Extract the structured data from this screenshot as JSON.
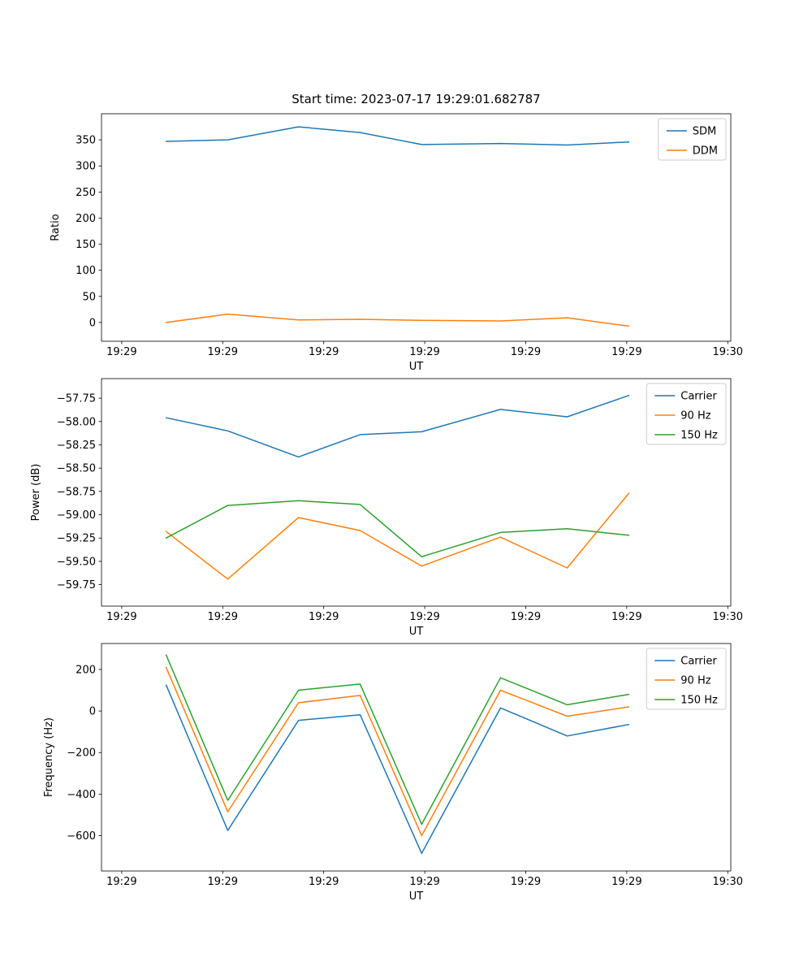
{
  "title": "Start time: 2023-07-17 19:29:01.682787",
  "chart_data": [
    {
      "type": "line",
      "xlabel": "UT",
      "ylabel": "Ratio",
      "x_seconds": [
        4.4,
        10.5,
        17.5,
        23.6,
        29.7,
        37.5,
        44.1,
        50.2
      ],
      "xlim": [
        -2,
        60.3
      ],
      "ylim": [
        -36,
        400
      ],
      "xticks": [
        0,
        10,
        20,
        30,
        40,
        50,
        60
      ],
      "xtick_labels": [
        "19:29",
        "19:29",
        "19:29",
        "19:29",
        "19:29",
        "19:29",
        "19:30"
      ],
      "yticks": [
        0,
        50,
        100,
        150,
        200,
        250,
        300,
        350
      ],
      "ytick_labels": [
        "0",
        "50",
        "100",
        "150",
        "200",
        "250",
        "300",
        "350"
      ],
      "legend_position": "upper right",
      "grid": false,
      "series": [
        {
          "name": "SDM",
          "color": "#1f77b4",
          "values": [
            347,
            350,
            375,
            364,
            341,
            343,
            340,
            346
          ]
        },
        {
          "name": "DDM",
          "color": "#ff7f0e",
          "values": [
            0,
            16,
            5,
            6,
            4,
            3,
            9,
            -7
          ]
        }
      ]
    },
    {
      "type": "line",
      "xlabel": "UT",
      "ylabel": "Power (dB)",
      "x_seconds": [
        4.4,
        10.5,
        17.5,
        23.6,
        29.7,
        37.5,
        44.1,
        50.2
      ],
      "xlim": [
        -2,
        60.3
      ],
      "ylim": [
        -59.98,
        -57.54
      ],
      "xticks": [
        0,
        10,
        20,
        30,
        40,
        50,
        60
      ],
      "xtick_labels": [
        "19:29",
        "19:29",
        "19:29",
        "19:29",
        "19:29",
        "19:29",
        "19:30"
      ],
      "yticks": [
        -59.75,
        -59.5,
        -59.25,
        -59.0,
        -58.75,
        -58.5,
        -58.25,
        -58.0,
        -57.75
      ],
      "ytick_labels": [
        "−59.75",
        "−59.50",
        "−59.25",
        "−59.00",
        "−58.75",
        "−58.50",
        "−58.25",
        "−58.00",
        "−57.75"
      ],
      "legend_position": "upper right",
      "grid": false,
      "series": [
        {
          "name": "Carrier",
          "color": "#1f77b4",
          "values": [
            -57.96,
            -58.1,
            -58.38,
            -58.14,
            -58.11,
            -57.87,
            -57.95,
            -57.72
          ]
        },
        {
          "name": "90 Hz",
          "color": "#ff7f0e",
          "values": [
            -59.18,
            -59.69,
            -59.03,
            -59.17,
            -59.55,
            -59.24,
            -59.57,
            -58.77
          ]
        },
        {
          "name": "150 Hz",
          "color": "#2ca02c",
          "values": [
            -59.25,
            -58.9,
            -58.85,
            -58.89,
            -59.45,
            -59.19,
            -59.15,
            -59.22
          ]
        }
      ]
    },
    {
      "type": "line",
      "xlabel": "UT",
      "ylabel": "Frequency (Hz)",
      "x_seconds": [
        4.4,
        10.5,
        17.5,
        23.6,
        29.7,
        37.5,
        44.1,
        50.2
      ],
      "xlim": [
        -2,
        60.3
      ],
      "ylim": [
        -770,
        325
      ],
      "xticks": [
        0,
        10,
        20,
        30,
        40,
        50,
        60
      ],
      "xtick_labels": [
        "19:29",
        "19:29",
        "19:29",
        "19:29",
        "19:29",
        "19:29",
        "19:30"
      ],
      "yticks": [
        -600,
        -400,
        -200,
        0,
        200
      ],
      "ytick_labels": [
        "−600",
        "−400",
        "−200",
        "0",
        "200"
      ],
      "legend_position": "upper right",
      "grid": false,
      "series": [
        {
          "name": "Carrier",
          "color": "#1f77b4",
          "values": [
            125,
            -575,
            -45,
            -18,
            -685,
            15,
            -120,
            -65
          ]
        },
        {
          "name": "90 Hz",
          "color": "#ff7f0e",
          "values": [
            210,
            -485,
            40,
            75,
            -600,
            100,
            -25,
            20
          ]
        },
        {
          "name": "150 Hz",
          "color": "#2ca02c",
          "values": [
            270,
            -430,
            100,
            130,
            -545,
            160,
            30,
            80
          ]
        }
      ]
    }
  ]
}
